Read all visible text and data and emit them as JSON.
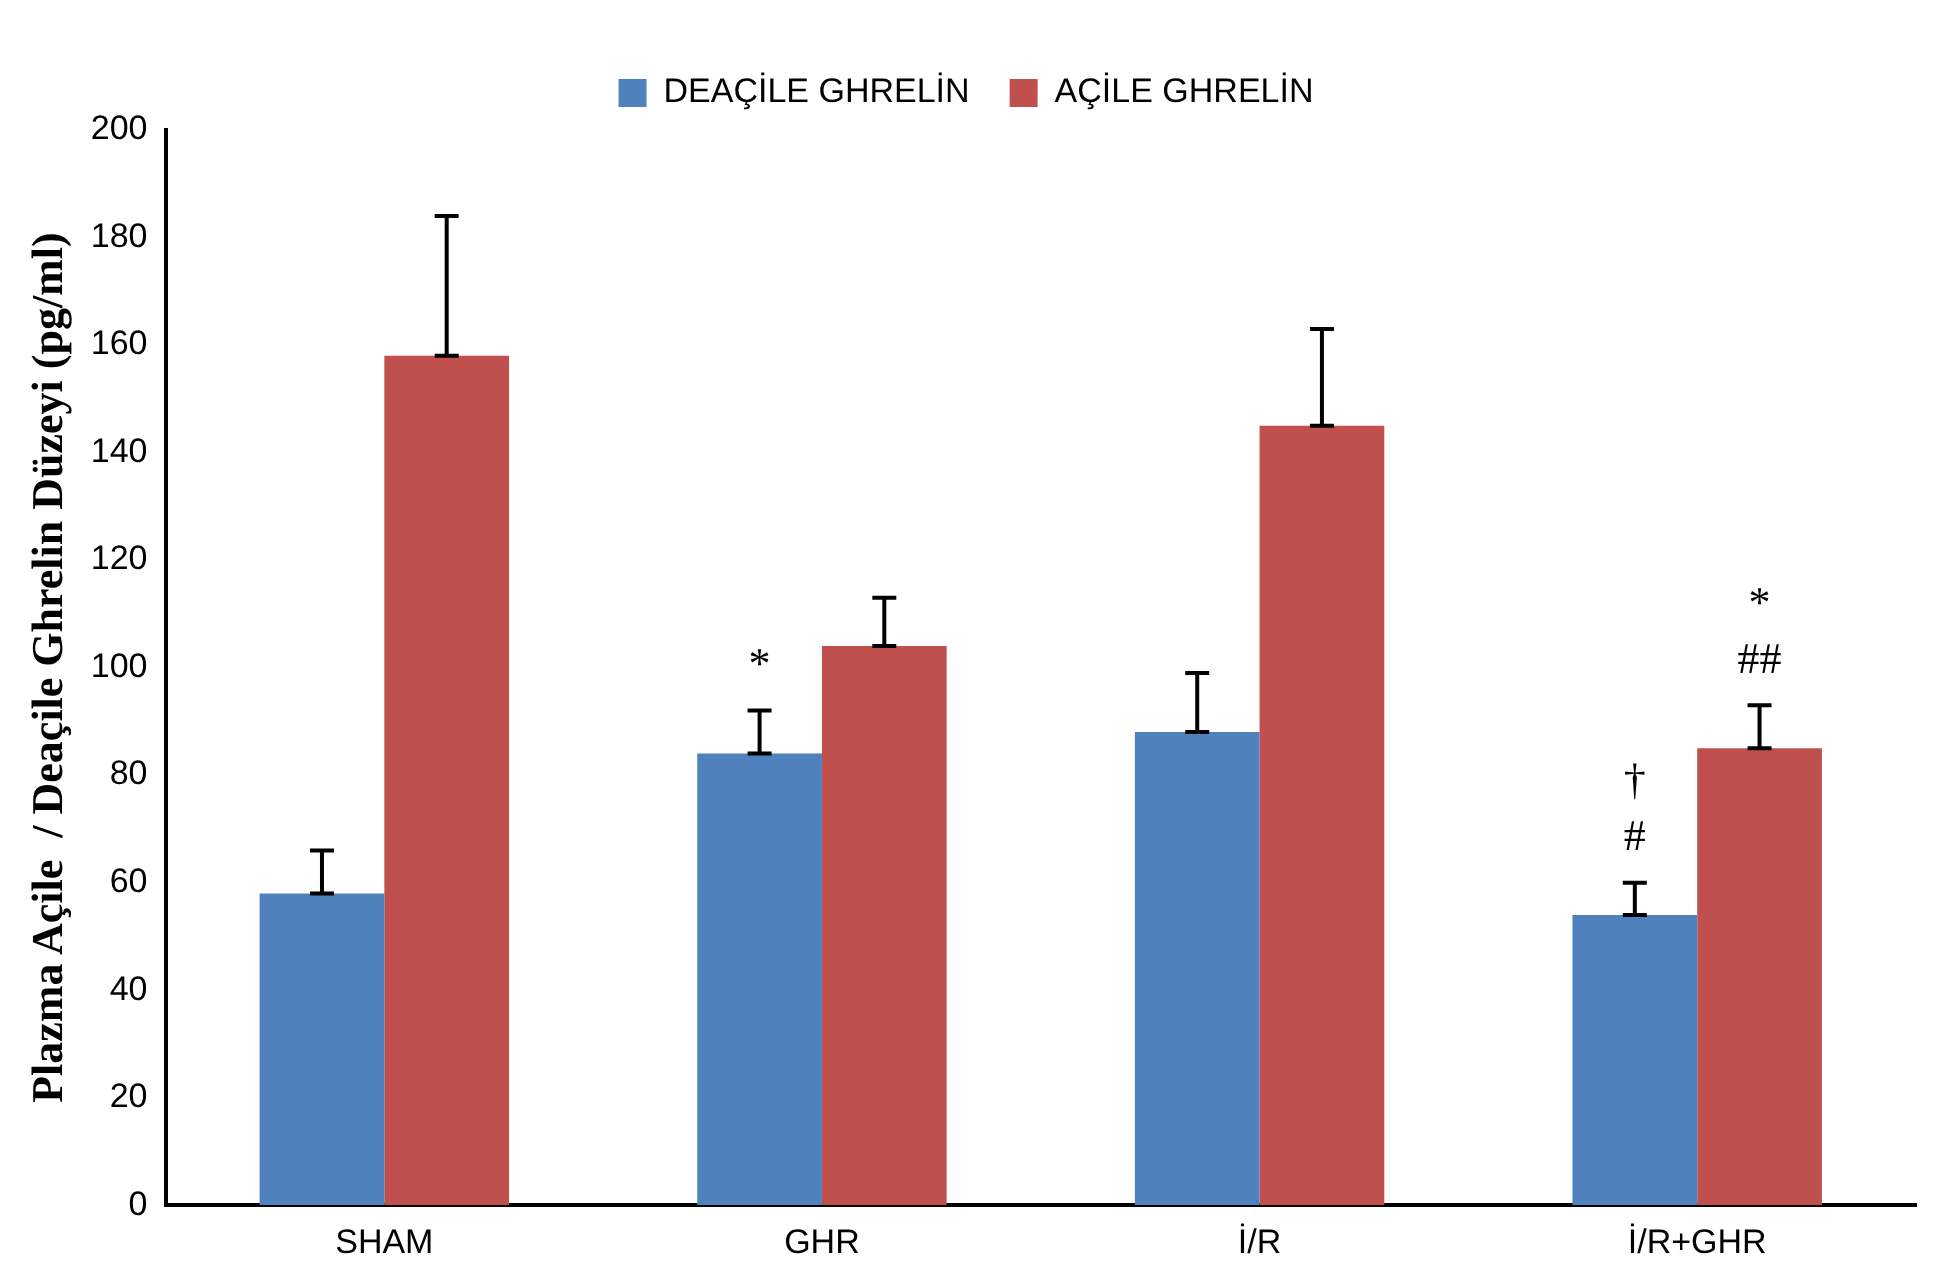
{
  "chart_data": {
    "type": "bar",
    "ylabel": "Plazma Açile  / Deaçile Ghrelin Düzeyi (pg/ml)",
    "categories": [
      "SHAM",
      "GHR",
      "İ/R",
      "İ/R+GHR"
    ],
    "series": [
      {
        "name": "DEAÇİLE GHRELİN",
        "color": "#4f81bd",
        "values": [
          58,
          84,
          88,
          54
        ],
        "errors": [
          [
            58,
            66
          ],
          [
            84,
            92
          ],
          [
            88,
            99
          ],
          [
            54,
            60
          ]
        ]
      },
      {
        "name": "AÇİLE GHRELİN",
        "color": "#c0504d",
        "values": [
          158,
          104,
          145,
          85
        ],
        "errors": [
          [
            158,
            184
          ],
          [
            104,
            113
          ],
          [
            145,
            163
          ],
          [
            85,
            93
          ]
        ]
      }
    ],
    "ylim": [
      0,
      200
    ],
    "yticks": [
      0,
      20,
      40,
      60,
      80,
      100,
      120,
      140,
      160,
      180,
      200
    ],
    "legend": "top",
    "grid": false,
    "annotations": [
      {
        "text": "*",
        "x": "GHR",
        "y": 92
      },
      {
        "text": "#",
        "x": "İ/R+GHR",
        "y": 60
      },
      {
        "text": "†",
        "x": "İ/R+GHR",
        "y": 60
      },
      {
        "text": "##",
        "x": "İ/R+GHR",
        "y": 85
      },
      {
        "text": "*",
        "x": "İ/R+GHR",
        "y": 85
      }
    ]
  }
}
